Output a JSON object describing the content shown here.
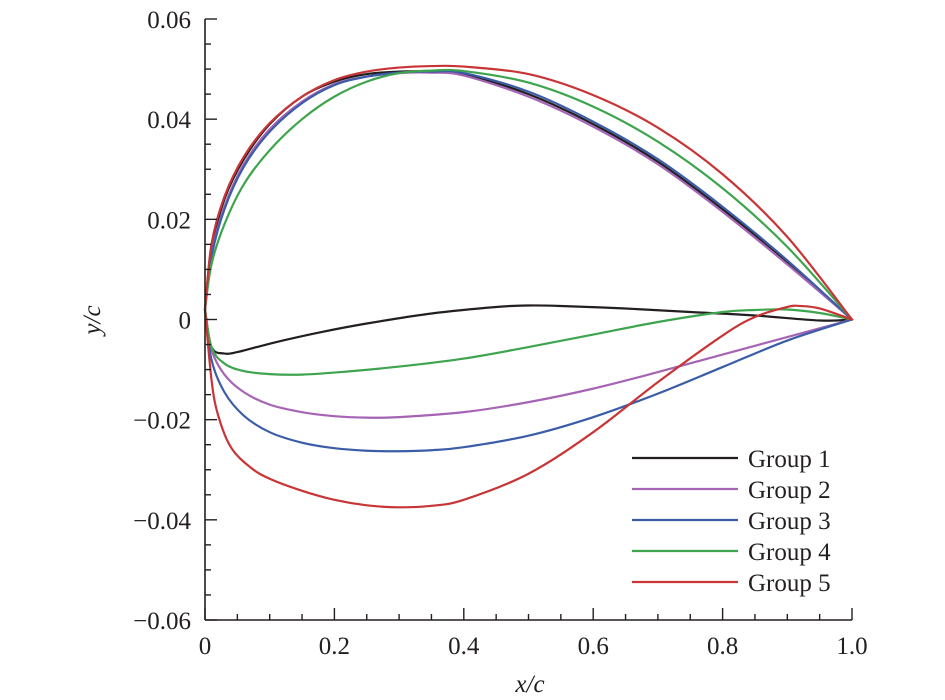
{
  "chart_data": {
    "type": "line",
    "title": "",
    "xlabel": "x/c",
    "ylabel": "y/c",
    "xlim": [
      0,
      1.0
    ],
    "ylim": [
      -0.06,
      0.06
    ],
    "x_ticks": [
      0,
      0.2,
      0.4,
      0.6,
      0.8,
      1.0
    ],
    "x_tick_labels": [
      "0",
      "0.2",
      "0.4",
      "0.6",
      "0.8",
      "1.0"
    ],
    "y_ticks": [
      0.06,
      0.04,
      0.02,
      0,
      -0.02,
      -0.04,
      -0.06
    ],
    "y_tick_labels": [
      "0.06",
      "0.04",
      "0.02",
      "0",
      "−0.02",
      "−0.04",
      "−0.06"
    ],
    "grid": false,
    "legend_position": "bottom-right",
    "series": [
      {
        "name": "Group 1",
        "color": "#231f20",
        "upper": {
          "x": [
            0,
            0.01,
            0.03,
            0.06,
            0.1,
            0.15,
            0.2,
            0.25,
            0.3,
            0.35,
            0.4,
            0.5,
            0.6,
            0.7,
            0.8,
            0.9,
            1.0
          ],
          "y": [
            0.002,
            0.014,
            0.024,
            0.032,
            0.039,
            0.0445,
            0.0475,
            0.049,
            0.0495,
            0.0495,
            0.049,
            0.045,
            0.039,
            0.0315,
            0.022,
            0.0115,
            0
          ]
        },
        "lower": {
          "x": [
            0,
            0.01,
            0.03,
            0.05,
            0.08,
            0.12,
            0.18,
            0.25,
            0.35,
            0.45,
            0.5,
            0.55,
            0.65,
            0.75,
            0.85,
            0.95,
            1.0
          ],
          "y": [
            0.002,
            -0.0055,
            -0.0068,
            -0.0065,
            -0.0055,
            -0.0042,
            -0.0025,
            -0.0008,
            0.0012,
            0.0025,
            0.0028,
            0.0027,
            0.0022,
            0.0015,
            0.0008,
            -0.0002,
            0
          ]
        }
      },
      {
        "name": "Group 2",
        "color": "#a564b4",
        "upper": {
          "x": [
            0,
            0.01,
            0.03,
            0.06,
            0.1,
            0.15,
            0.2,
            0.25,
            0.3,
            0.35,
            0.4,
            0.5,
            0.6,
            0.7,
            0.8,
            0.9,
            1.0
          ],
          "y": [
            0.002,
            0.013,
            0.0225,
            0.031,
            0.038,
            0.0435,
            0.047,
            0.0485,
            0.0492,
            0.0493,
            0.0487,
            0.0445,
            0.0385,
            0.031,
            0.0215,
            0.011,
            0
          ]
        },
        "lower": {
          "x": [
            0,
            0.01,
            0.03,
            0.06,
            0.1,
            0.15,
            0.2,
            0.25,
            0.3,
            0.4,
            0.5,
            0.6,
            0.7,
            0.8,
            0.9,
            1.0
          ],
          "y": [
            0.002,
            -0.006,
            -0.011,
            -0.0145,
            -0.017,
            -0.0185,
            -0.0193,
            -0.0196,
            -0.0195,
            -0.0185,
            -0.0165,
            -0.0138,
            -0.0105,
            -0.007,
            -0.0035,
            0
          ]
        }
      },
      {
        "name": "Group 3",
        "color": "#3b5da8",
        "upper": {
          "x": [
            0,
            0.01,
            0.03,
            0.06,
            0.1,
            0.15,
            0.2,
            0.25,
            0.3,
            0.35,
            0.4,
            0.5,
            0.6,
            0.7,
            0.8,
            0.9,
            1.0
          ],
          "y": [
            0.002,
            0.0125,
            0.022,
            0.0305,
            0.0375,
            0.0432,
            0.0468,
            0.0485,
            0.0493,
            0.0495,
            0.0492,
            0.0455,
            0.0395,
            0.032,
            0.0225,
            0.0118,
            0
          ]
        },
        "lower": {
          "x": [
            0,
            0.01,
            0.03,
            0.06,
            0.1,
            0.15,
            0.2,
            0.25,
            0.3,
            0.35,
            0.4,
            0.5,
            0.6,
            0.7,
            0.8,
            0.9,
            1.0
          ],
          "y": [
            0.002,
            -0.008,
            -0.0145,
            -0.0192,
            -0.0225,
            -0.0246,
            -0.0257,
            -0.0262,
            -0.0263,
            -0.0261,
            -0.0255,
            -0.0232,
            -0.0195,
            -0.0148,
            -0.0095,
            -0.0042,
            0
          ]
        }
      },
      {
        "name": "Group 4",
        "color": "#3ea44e",
        "upper": {
          "x": [
            0,
            0.01,
            0.03,
            0.06,
            0.1,
            0.15,
            0.2,
            0.25,
            0.3,
            0.35,
            0.4,
            0.5,
            0.6,
            0.7,
            0.8,
            0.9,
            1.0
          ],
          "y": [
            0.002,
            0.011,
            0.019,
            0.027,
            0.0338,
            0.04,
            0.0445,
            0.0475,
            0.0492,
            0.0497,
            0.0496,
            0.0473,
            0.0425,
            0.0355,
            0.0262,
            0.0145,
            0
          ]
        },
        "lower": {
          "x": [
            0,
            0.01,
            0.03,
            0.06,
            0.1,
            0.15,
            0.2,
            0.3,
            0.4,
            0.5,
            0.6,
            0.7,
            0.8,
            0.85,
            0.9,
            0.95,
            1.0
          ],
          "y": [
            0.002,
            -0.0055,
            -0.0088,
            -0.0103,
            -0.0109,
            -0.011,
            -0.0106,
            -0.0094,
            -0.0078,
            -0.0055,
            -0.003,
            -0.0005,
            0.0015,
            0.0019,
            0.002,
            0.0013,
            0
          ]
        }
      },
      {
        "name": "Group 5",
        "color": "#c83536",
        "upper": {
          "x": [
            0,
            0.01,
            0.03,
            0.06,
            0.1,
            0.15,
            0.2,
            0.25,
            0.3,
            0.35,
            0.4,
            0.5,
            0.6,
            0.7,
            0.8,
            0.9,
            1.0
          ],
          "y": [
            0.002,
            0.015,
            0.0245,
            0.0325,
            0.0392,
            0.0445,
            0.0478,
            0.0495,
            0.0503,
            0.0506,
            0.0505,
            0.049,
            0.0448,
            0.0383,
            0.029,
            0.0165,
            0
          ]
        },
        "lower": {
          "x": [
            0,
            0.01,
            0.02,
            0.04,
            0.07,
            0.1,
            0.15,
            0.2,
            0.25,
            0.3,
            0.35,
            0.4,
            0.5,
            0.6,
            0.7,
            0.8,
            0.85,
            0.9,
            0.92,
            0.95,
            1.0
          ],
          "y": [
            0.002,
            -0.012,
            -0.019,
            -0.0255,
            -0.0295,
            -0.0318,
            -0.0342,
            -0.036,
            -0.0371,
            -0.0375,
            -0.0372,
            -0.036,
            -0.0308,
            -0.0225,
            -0.0125,
            -0.0032,
            0.0005,
            0.0025,
            0.0027,
            0.0022,
            0
          ]
        }
      }
    ]
  }
}
